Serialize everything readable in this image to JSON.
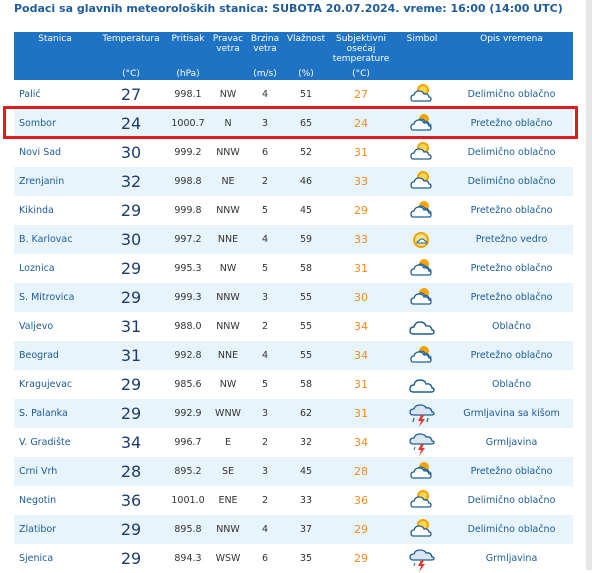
{
  "heading": "Podaci sa glavnih meteoroloških stanica:  SUBOTA 20.07.2024.  vreme: 16:00 (14:00 UTC)",
  "columns": [
    {
      "label": "Stanica",
      "unit": ""
    },
    {
      "label": "Temperatura",
      "unit": "(°C)"
    },
    {
      "label": "Pritisak",
      "unit": "(hPa)"
    },
    {
      "label": "Pravac vetra",
      "unit": ""
    },
    {
      "label": "Brzina vetra",
      "unit": "(m/s)"
    },
    {
      "label": "Vlažnost",
      "unit": "(%)"
    },
    {
      "label": "Subjektivni osećaj temperature",
      "unit": "(°C)"
    },
    {
      "label": "Simbol",
      "unit": ""
    },
    {
      "label": "Opis vremena",
      "unit": ""
    }
  ],
  "highlight_row": 1,
  "highlight_color": "#e11b22",
  "rows": [
    {
      "station": "Palić",
      "temp": "27",
      "pressure": "998.1",
      "dir": "NW",
      "speed": "4",
      "hum": "51",
      "feel": "27",
      "icon": "partly-cloudy-icon",
      "desc": "Delimično oblačno"
    },
    {
      "station": "Sombor",
      "temp": "24",
      "pressure": "1000.7",
      "dir": "N",
      "speed": "3",
      "hum": "65",
      "feel": "24",
      "icon": "mostly-cloudy-icon",
      "desc": "Pretežno oblačno"
    },
    {
      "station": "Novi Sad",
      "temp": "30",
      "pressure": "999.2",
      "dir": "NNW",
      "speed": "6",
      "hum": "52",
      "feel": "31",
      "icon": "partly-cloudy-icon",
      "desc": "Delimično oblačno"
    },
    {
      "station": "Zrenjanin",
      "temp": "32",
      "pressure": "998.8",
      "dir": "NE",
      "speed": "2",
      "hum": "46",
      "feel": "33",
      "icon": "partly-cloudy-icon",
      "desc": "Delimično oblačno"
    },
    {
      "station": "Kikinda",
      "temp": "29",
      "pressure": "999.8",
      "dir": "NNW",
      "speed": "5",
      "hum": "45",
      "feel": "29",
      "icon": "mostly-cloudy-icon",
      "desc": "Pretežno oblačno"
    },
    {
      "station": "B. Karlovac",
      "temp": "30",
      "pressure": "997.2",
      "dir": "NNE",
      "speed": "4",
      "hum": "59",
      "feel": "33",
      "icon": "mostly-clear-icon",
      "desc": "Pretežno vedro"
    },
    {
      "station": "Loznica",
      "temp": "29",
      "pressure": "995.3",
      "dir": "NW",
      "speed": "5",
      "hum": "58",
      "feel": "31",
      "icon": "mostly-cloudy-icon",
      "desc": "Pretežno oblačno"
    },
    {
      "station": "S. Mitrovica",
      "temp": "29",
      "pressure": "999.3",
      "dir": "NNW",
      "speed": "3",
      "hum": "55",
      "feel": "30",
      "icon": "mostly-cloudy-icon",
      "desc": "Pretežno oblačno"
    },
    {
      "station": "Valjevo",
      "temp": "31",
      "pressure": "988.0",
      "dir": "NNW",
      "speed": "2",
      "hum": "55",
      "feel": "34",
      "icon": "cloudy-icon",
      "desc": "Oblačno"
    },
    {
      "station": "Beograd",
      "temp": "31",
      "pressure": "992.8",
      "dir": "NNE",
      "speed": "4",
      "hum": "55",
      "feel": "34",
      "icon": "mostly-cloudy-icon",
      "desc": "Pretežno oblačno"
    },
    {
      "station": "Kragujevac",
      "temp": "29",
      "pressure": "985.6",
      "dir": "NW",
      "speed": "5",
      "hum": "58",
      "feel": "31",
      "icon": "cloudy-icon",
      "desc": "Oblačno"
    },
    {
      "station": "S. Palanka",
      "temp": "29",
      "pressure": "992.9",
      "dir": "WNW",
      "speed": "3",
      "hum": "62",
      "feel": "31",
      "icon": "thunderstorm-rain-icon",
      "desc": "Grmljavina sa kišom"
    },
    {
      "station": "V. Gradište",
      "temp": "34",
      "pressure": "996.7",
      "dir": "E",
      "speed": "2",
      "hum": "32",
      "feel": "34",
      "icon": "thunderstorm-icon",
      "desc": "Grmljavina"
    },
    {
      "station": "Crni Vrh",
      "temp": "28",
      "pressure": "895.2",
      "dir": "SE",
      "speed": "3",
      "hum": "45",
      "feel": "28",
      "icon": "mostly-cloudy-icon",
      "desc": "Pretežno oblačno"
    },
    {
      "station": "Negotin",
      "temp": "36",
      "pressure": "1001.0",
      "dir": "ENE",
      "speed": "2",
      "hum": "33",
      "feel": "36",
      "icon": "partly-cloudy-icon",
      "desc": "Delimično oblačno"
    },
    {
      "station": "Zlatibor",
      "temp": "29",
      "pressure": "895.8",
      "dir": "NNW",
      "speed": "4",
      "hum": "37",
      "feel": "29",
      "icon": "partly-cloudy-icon",
      "desc": "Delimično oblačno"
    },
    {
      "station": "Sjenica",
      "temp": "29",
      "pressure": "894.3",
      "dir": "WSW",
      "speed": "6",
      "hum": "35",
      "feel": "29",
      "icon": "thunderstorm-icon",
      "desc": "Grmljavina"
    }
  ]
}
